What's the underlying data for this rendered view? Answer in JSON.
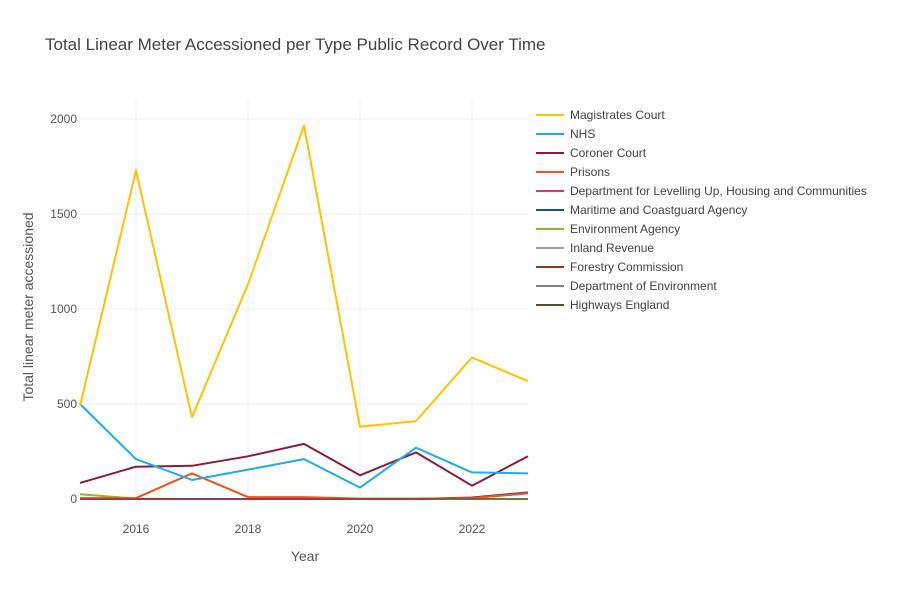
{
  "chart_data": {
    "type": "line",
    "title": "Total Linear Meter Accessioned per Type Public Record Over Time",
    "xlabel": "Year",
    "ylabel": "Total linear meter accessioned",
    "xlim": [
      2015,
      2023
    ],
    "ylim": [
      0,
      2100
    ],
    "x_ticks": [
      2016,
      2018,
      2020,
      2022
    ],
    "y_ticks": [
      0,
      500,
      1000,
      1500,
      2000
    ],
    "grid": true,
    "legend_position": "right",
    "x": [
      2015,
      2016,
      2017,
      2018,
      2019,
      2020,
      2021,
      2022,
      2023
    ],
    "series": [
      {
        "name": "Magistrates Court",
        "color": "#FFC300",
        "values": [
          490,
          1730,
          430,
          1130,
          1965,
          380,
          410,
          745,
          620
        ]
      },
      {
        "name": "NHS",
        "color": "#1AADF0",
        "values": [
          500,
          210,
          100,
          155,
          210,
          60,
          270,
          140,
          135
        ]
      },
      {
        "name": "Coroner Court",
        "color": "#8A1C3C",
        "values": [
          85,
          170,
          175,
          225,
          290,
          125,
          245,
          70,
          225
        ]
      },
      {
        "name": "Prisons",
        "color": "#F4511E",
        "values": [
          5,
          5,
          135,
          10,
          10,
          2,
          2,
          5,
          30
        ]
      },
      {
        "name": "Department for Levelling Up, Housing and Communities",
        "color": "#E5326B",
        "values": [
          0,
          0,
          0,
          0,
          0,
          0,
          0,
          5,
          30
        ]
      },
      {
        "name": "Maritime and Coastguard Agency",
        "color": "#1B4F8A",
        "values": [
          0,
          0,
          0,
          0,
          0,
          0,
          0,
          8,
          35
        ]
      },
      {
        "name": "Environment Agency",
        "color": "#8DB92E",
        "values": [
          25,
          2,
          0,
          0,
          0,
          0,
          0,
          0,
          0
        ]
      },
      {
        "name": "Inland Revenue",
        "color": "#A0A0A0",
        "values": [
          0,
          0,
          0,
          0,
          0,
          0,
          0,
          0,
          0
        ]
      },
      {
        "name": "Forestry Commission",
        "color": "#8B3A1A",
        "values": [
          0,
          0,
          0,
          0,
          0,
          0,
          0,
          0,
          0
        ]
      },
      {
        "name": "Department of Environment",
        "color": "#7F7F7F",
        "values": [
          0,
          0,
          0,
          0,
          0,
          0,
          0,
          0,
          0
        ]
      },
      {
        "name": "Highways England",
        "color": "#5C4A32",
        "values": [
          0,
          0,
          0,
          0,
          0,
          0,
          0,
          0,
          0
        ]
      }
    ]
  }
}
